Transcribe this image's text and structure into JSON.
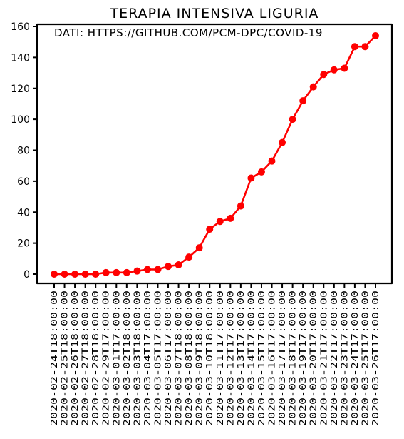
{
  "chart_data": {
    "type": "line",
    "title": "TERAPIA INTENSIVA LIGURIA",
    "annotation": "DATI: HTTPS://GITHUB.COM/PCM-DPC/COVID-19",
    "xlabel": "",
    "ylabel": "",
    "ylim": [
      -8,
      161
    ],
    "yticks": [
      0,
      20,
      40,
      60,
      80,
      100,
      120,
      140,
      160
    ],
    "grid": false,
    "series_color": "#ff0000",
    "categories": [
      "2020-02-24T18:00:00",
      "2020-02-25T18:00:00",
      "2020-02-26T18:00:00",
      "2020-02-27T18:00:00",
      "2020-02-28T18:00:00",
      "2020-02-29T17:00:00",
      "2020-03-01T17:00:00",
      "2020-03-02T18:00:00",
      "2020-03-03T18:00:00",
      "2020-03-04T17:00:00",
      "2020-03-05T17:00:00",
      "2020-03-06T17:00:00",
      "2020-03-07T18:00:00",
      "2020-03-08T18:00:00",
      "2020-03-09T18:00:00",
      "2020-03-10T18:00:00",
      "2020-03-11T17:00:00",
      "2020-03-12T17:00:00",
      "2020-03-13T17:00:00",
      "2020-03-14T17:00:00",
      "2020-03-15T17:00:00",
      "2020-03-16T17:00:00",
      "2020-03-17T17:00:00",
      "2020-03-18T17:00:00",
      "2020-03-19T17:00:00",
      "2020-03-20T17:00:00",
      "2020-03-21T17:00:00",
      "2020-03-22T17:00:00",
      "2020-03-23T17:00:00",
      "2020-03-24T17:00:00",
      "2020-03-25T17:00:00",
      "2020-03-26T17:00:00"
    ],
    "values": [
      0,
      0,
      0,
      0,
      0,
      1,
      1,
      1,
      2,
      3,
      3,
      5,
      6,
      11,
      17,
      29,
      34,
      36,
      44,
      62,
      66,
      73,
      85,
      100,
      112,
      121,
      129,
      132,
      133,
      147,
      147,
      154
    ]
  }
}
